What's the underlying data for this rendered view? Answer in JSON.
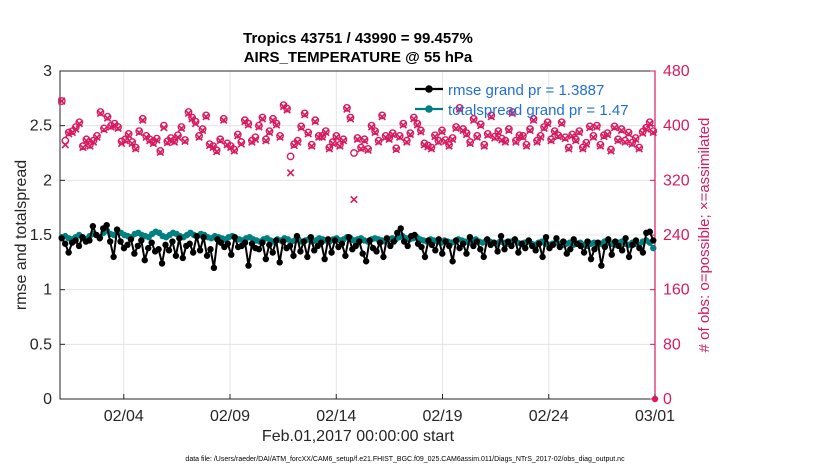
{
  "chart_data": {
    "type": "line",
    "title": "Tropics 43751 / 43990 = 99.457%",
    "subtitle": "AIRS_TEMPERATURE @ 55 hPa",
    "xlabel": "Feb.01,2017 00:00:00 start",
    "ylabel": "rmse and totalspread",
    "ylabel_right": "# of obs: o=possible; ×=assimilated",
    "xlim": [
      0,
      28
    ],
    "ylim": [
      0,
      3
    ],
    "ylim_right": [
      0,
      480
    ],
    "x_ticks": [
      {
        "value": 3,
        "label": "02/04"
      },
      {
        "value": 8,
        "label": "02/09"
      },
      {
        "value": 13,
        "label": "02/14"
      },
      {
        "value": 18,
        "label": "02/19"
      },
      {
        "value": 23,
        "label": "02/24"
      },
      {
        "value": 28,
        "label": "03/01"
      }
    ],
    "y_ticks": [
      "0",
      "0.5",
      "1",
      "1.5",
      "2",
      "2.5",
      "3"
    ],
    "y_ticks_right": [
      "0",
      "80",
      "160",
      "240",
      "320",
      "400",
      "480"
    ],
    "legend_position": "top-right",
    "series": [
      {
        "name": "rmse grand pr = 1.3887",
        "color": "#000000",
        "axis": "left",
        "marker": "filled-circle",
        "values": [
          1.47,
          1.42,
          1.34,
          1.43,
          1.45,
          1.4,
          1.48,
          1.44,
          1.45,
          1.58,
          1.5,
          1.47,
          1.56,
          1.59,
          1.44,
          1.3,
          1.55,
          1.44,
          1.38,
          1.41,
          1.46,
          1.33,
          1.4,
          1.45,
          1.27,
          1.38,
          1.43,
          1.35,
          1.37,
          1.24,
          1.41,
          1.36,
          1.44,
          1.31,
          1.47,
          1.29,
          1.4,
          1.42,
          1.34,
          1.49,
          1.36,
          1.48,
          1.31,
          1.37,
          1.2,
          1.46,
          1.43,
          1.39,
          1.42,
          1.32,
          1.48,
          1.39,
          1.4,
          1.43,
          1.22,
          1.42,
          1.38,
          1.37,
          1.43,
          1.28,
          1.41,
          1.34,
          1.45,
          1.25,
          1.44,
          1.38,
          1.4,
          1.31,
          1.49,
          1.35,
          1.44,
          1.3,
          1.48,
          1.36,
          1.4,
          1.43,
          1.28,
          1.46,
          1.34,
          1.45,
          1.39,
          1.42,
          1.31,
          1.48,
          1.37,
          1.4,
          1.44,
          1.33,
          1.26,
          1.45,
          1.38,
          1.35,
          1.43,
          1.3,
          1.47,
          1.4,
          1.44,
          1.52,
          1.56,
          1.44,
          1.4,
          1.49,
          1.5,
          1.42,
          1.39,
          1.3,
          1.45,
          1.41,
          1.36,
          1.46,
          1.33,
          1.44,
          1.4,
          1.26,
          1.45,
          1.38,
          1.42,
          1.33,
          1.48,
          1.4,
          1.44,
          1.37,
          1.3,
          1.46,
          1.41,
          1.43,
          1.35,
          1.49,
          1.37,
          1.44,
          1.4,
          1.46,
          1.34,
          1.42,
          1.38,
          1.45,
          1.4,
          1.36,
          1.42,
          1.3,
          1.48,
          1.38,
          1.41,
          1.47,
          1.39,
          1.44,
          1.33,
          1.37,
          1.46,
          1.42,
          1.4,
          1.34,
          1.44,
          1.28,
          1.37,
          1.43,
          1.22,
          1.39,
          1.46,
          1.32,
          1.44,
          1.4,
          1.36,
          1.47,
          1.3,
          1.41,
          1.45,
          1.38,
          1.34,
          1.52,
          1.53,
          1.45
        ]
      },
      {
        "name": "totalspread grand pr = 1.47",
        "color": "#008080",
        "axis": "left",
        "marker": "filled-circle",
        "values": [
          1.48,
          1.49,
          1.47,
          1.46,
          1.48,
          1.5,
          1.47,
          1.46,
          1.49,
          1.51,
          1.5,
          1.48,
          1.52,
          1.54,
          1.51,
          1.5,
          1.53,
          1.52,
          1.5,
          1.49,
          1.48,
          1.51,
          1.52,
          1.5,
          1.49,
          1.48,
          1.51,
          1.53,
          1.52,
          1.49,
          1.48,
          1.5,
          1.52,
          1.51,
          1.49,
          1.48,
          1.5,
          1.52,
          1.5,
          1.49,
          1.51,
          1.5,
          1.48,
          1.47,
          1.49,
          1.48,
          1.47,
          1.46,
          1.48,
          1.49,
          1.47,
          1.46,
          1.45,
          1.47,
          1.48,
          1.46,
          1.45,
          1.44,
          1.46,
          1.47,
          1.45,
          1.44,
          1.46,
          1.45,
          1.47,
          1.46,
          1.44,
          1.45,
          1.46,
          1.44,
          1.45,
          1.46,
          1.44,
          1.45,
          1.47,
          1.46,
          1.45,
          1.44,
          1.46,
          1.47,
          1.45,
          1.46,
          1.48,
          1.47,
          1.45,
          1.46,
          1.47,
          1.45,
          1.44,
          1.46,
          1.47,
          1.46,
          1.45,
          1.44,
          1.46,
          1.47,
          1.46,
          1.48,
          1.49,
          1.47,
          1.46,
          1.47,
          1.48,
          1.46,
          1.45,
          1.44,
          1.46,
          1.45,
          1.44,
          1.43,
          1.45,
          1.44,
          1.43,
          1.44,
          1.46,
          1.45,
          1.44,
          1.43,
          1.45,
          1.46,
          1.44,
          1.43,
          1.45,
          1.44,
          1.43,
          1.42,
          1.44,
          1.43,
          1.42,
          1.44,
          1.45,
          1.43,
          1.42,
          1.43,
          1.44,
          1.42,
          1.41,
          1.43,
          1.44,
          1.42,
          1.41,
          1.42,
          1.43,
          1.42,
          1.41,
          1.42,
          1.43,
          1.41,
          1.42,
          1.43,
          1.41,
          1.4,
          1.42,
          1.43,
          1.41,
          1.42,
          1.44,
          1.43,
          1.42,
          1.41,
          1.43,
          1.44,
          1.42,
          1.41,
          1.43,
          1.42,
          1.41,
          1.44,
          1.45,
          1.43,
          1.38
        ]
      },
      {
        "name": "possible obs",
        "color": "#d81b60",
        "axis": "right",
        "marker": "circle",
        "values": [
          436,
          378,
          390,
          392,
          398,
          405,
          370,
          380,
          372,
          378,
          385,
          420,
          396,
          413,
          400,
          403,
          398,
          377,
          380,
          388,
          376,
          368,
          392,
          410,
          385,
          380,
          376,
          381,
          363,
          400,
          377,
          382,
          378,
          386,
          398,
          379,
          420,
          412,
          406,
          385,
          395,
          415,
          373,
          370,
          364,
          380,
          410,
          374,
          370,
          365,
          387,
          376,
          408,
          403,
          378,
          383,
          400,
          412,
          380,
          392,
          410,
          403,
          385,
          430,
          425,
          355,
          373,
          378,
          399,
          418,
          390,
          372,
          408,
          385,
          385,
          392,
          368,
          376,
          385,
          372,
          380,
          426,
          412,
          360,
          382,
          368,
          380,
          366,
          400,
          392,
          378,
          415,
          385,
          382,
          389,
          367,
          385,
          403,
          378,
          389,
          412,
          403,
          393,
          374,
          371,
          368,
          386,
          378,
          393,
          379,
          372,
          382,
          398,
          426,
          395,
          389,
          376,
          410,
          385,
          402,
          372,
          388,
          415,
          384,
          392,
          381,
          378,
          395,
          420,
          378,
          386,
          385,
          372,
          395,
          410,
          378,
          385,
          398,
          405,
          380,
          392,
          386,
          405,
          383,
          368,
          387,
          380,
          392,
          368,
          375,
          399,
          385,
          400,
          372,
          386,
          389,
          365,
          399,
          380,
          395,
          378,
          390,
          375,
          382,
          368,
          391,
          397,
          405,
          392
        ]
      },
      {
        "name": "assimilated obs",
        "color": "#d81b60",
        "axis": "right",
        "marker": "x",
        "values": [
          436,
          372,
          388,
          390,
          395,
          403,
          368,
          378,
          370,
          376,
          383,
          418,
          394,
          411,
          398,
          401,
          396,
          374,
          378,
          386,
          374,
          366,
          390,
          408,
          383,
          378,
          374,
          379,
          361,
          397,
          375,
          380,
          376,
          383,
          396,
          377,
          418,
          410,
          403,
          383,
          393,
          413,
          371,
          368,
          362,
          378,
          408,
          372,
          368,
          363,
          385,
          373,
          406,
          401,
          376,
          380,
          398,
          410,
          378,
          390,
          408,
          401,
          383,
          428,
          423,
          331,
          371,
          376,
          397,
          416,
          388,
          370,
          406,
          383,
          383,
          390,
          366,
          374,
          383,
          370,
          378,
          424,
          410,
          292,
          380,
          366,
          378,
          364,
          398,
          390,
          376,
          413,
          383,
          380,
          387,
          365,
          383,
          401,
          376,
          387,
          410,
          401,
          391,
          372,
          369,
          366,
          384,
          376,
          391,
          377,
          370,
          380,
          396,
          424,
          393,
          387,
          374,
          408,
          383,
          400,
          370,
          386,
          413,
          382,
          390,
          379,
          376,
          393,
          418,
          376,
          384,
          383,
          370,
          393,
          408,
          376,
          383,
          396,
          403,
          378,
          390,
          384,
          403,
          381,
          366,
          385,
          378,
          390,
          366,
          373,
          397,
          383,
          398,
          370,
          384,
          387,
          363,
          397,
          378,
          393,
          376,
          388,
          373,
          380,
          366,
          389,
          395,
          403,
          390
        ]
      }
    ]
  },
  "legend": {
    "rmse": "rmse grand pr = 1.3887",
    "spread": "totalspread grand pr = 1.47"
  },
  "footer": "data file: /Users/raeder/DAI/ATM_forcXX/CAM6_setup/f.e21.FHIST_BGC.f09_025.CAM6assim.011/Diags_NTrS_2017-02/obs_diag_output.nc"
}
